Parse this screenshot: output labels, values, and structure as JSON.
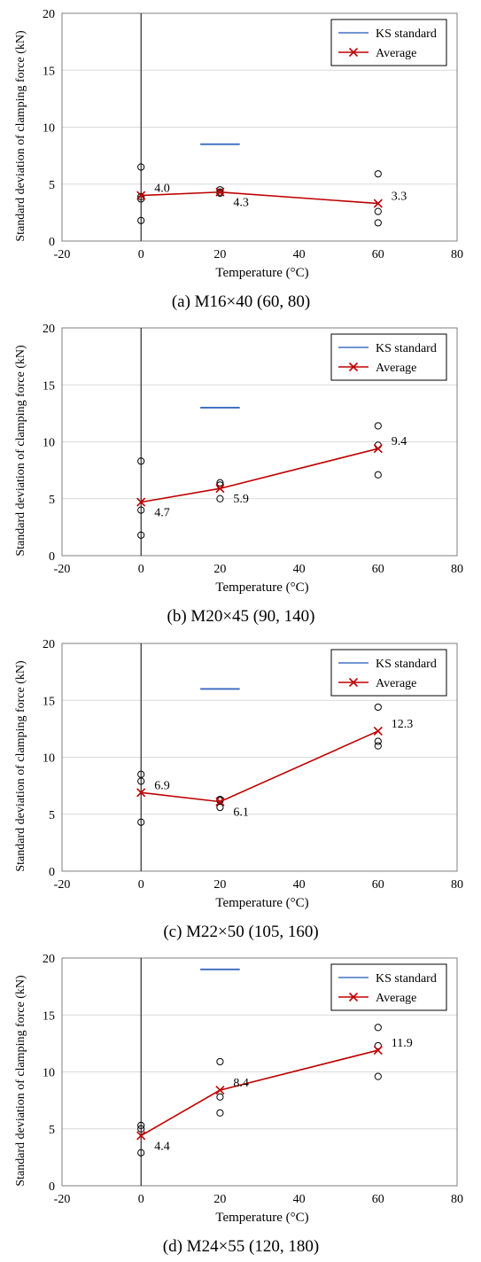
{
  "chart_data": [
    {
      "type": "scatter",
      "caption": "(a) M16×40 (60, 80)",
      "xlabel": "Temperature (°C)",
      "ylabel": "Standard deviation of clamping force (kN)",
      "xlim": [
        -20,
        80
      ],
      "ylim": [
        0,
        20
      ],
      "xticks": [
        -20,
        0,
        20,
        40,
        60,
        80
      ],
      "yticks": [
        0,
        5,
        10,
        15,
        20
      ],
      "grid": "horizontal",
      "legend_position": "top-right",
      "points": [
        {
          "x": 0,
          "y": 6.5
        },
        {
          "x": 0,
          "y": 3.9
        },
        {
          "x": 0,
          "y": 3.7
        },
        {
          "x": 0,
          "y": 1.8
        },
        {
          "x": 20,
          "y": 4.5
        },
        {
          "x": 20,
          "y": 4.3
        },
        {
          "x": 20,
          "y": 4.2
        },
        {
          "x": 60,
          "y": 5.9
        },
        {
          "x": 60,
          "y": 2.6
        },
        {
          "x": 60,
          "y": 1.6
        }
      ],
      "average": {
        "name": "Average",
        "color": "#c00000",
        "x": [
          0,
          20,
          60
        ],
        "y": [
          4.0,
          4.3,
          3.3
        ],
        "labels": [
          "4.0",
          "4.3",
          "3.3"
        ]
      },
      "ks_standard": {
        "name": "KS standard",
        "color": "#4472c4",
        "x": [
          15,
          25
        ],
        "y": 8.5
      }
    },
    {
      "type": "scatter",
      "caption": "(b) M20×45 (90, 140)",
      "xlabel": "Temperature (°C)",
      "ylabel": "Standard deviation of clamping force (kN)",
      "xlim": [
        -20,
        80
      ],
      "ylim": [
        0,
        20
      ],
      "xticks": [
        -20,
        0,
        20,
        40,
        60,
        80
      ],
      "yticks": [
        0,
        5,
        10,
        15,
        20
      ],
      "grid": "horizontal",
      "legend_position": "top-right",
      "points": [
        {
          "x": 0,
          "y": 8.3
        },
        {
          "x": 0,
          "y": 4.0
        },
        {
          "x": 0,
          "y": 1.8
        },
        {
          "x": 20,
          "y": 6.4
        },
        {
          "x": 20,
          "y": 6.2
        },
        {
          "x": 20,
          "y": 5.0
        },
        {
          "x": 60,
          "y": 11.4
        },
        {
          "x": 60,
          "y": 9.7
        },
        {
          "x": 60,
          "y": 7.1
        }
      ],
      "average": {
        "name": "Average",
        "color": "#c00000",
        "x": [
          0,
          20,
          60
        ],
        "y": [
          4.7,
          5.9,
          9.4
        ],
        "labels": [
          "4.7",
          "5.9",
          "9.4"
        ]
      },
      "ks_standard": {
        "name": "KS standard",
        "color": "#4472c4",
        "x": [
          15,
          25
        ],
        "y": 13.0
      }
    },
    {
      "type": "scatter",
      "caption": "(c) M22×50 (105, 160)",
      "xlabel": "Temperature (°C)",
      "ylabel": "Standard deviation of clamping force (kN)",
      "xlim": [
        -20,
        80
      ],
      "ylim": [
        0,
        20
      ],
      "xticks": [
        -20,
        0,
        20,
        40,
        60,
        80
      ],
      "yticks": [
        0,
        5,
        10,
        15,
        20
      ],
      "grid": "horizontal",
      "legend_position": "top-right",
      "points": [
        {
          "x": 0,
          "y": 8.5
        },
        {
          "x": 0,
          "y": 7.9
        },
        {
          "x": 0,
          "y": 4.3
        },
        {
          "x": 20,
          "y": 6.3
        },
        {
          "x": 20,
          "y": 6.2
        },
        {
          "x": 20,
          "y": 5.6
        },
        {
          "x": 60,
          "y": 14.4
        },
        {
          "x": 60,
          "y": 11.4
        },
        {
          "x": 60,
          "y": 11.0
        }
      ],
      "average": {
        "name": "Average",
        "color": "#c00000",
        "x": [
          0,
          20,
          60
        ],
        "y": [
          6.9,
          6.1,
          12.3
        ],
        "labels": [
          "6.9",
          "6.1",
          "12.3"
        ]
      },
      "ks_standard": {
        "name": "KS standard",
        "color": "#4472c4",
        "x": [
          15,
          25
        ],
        "y": 16.0
      }
    },
    {
      "type": "scatter",
      "caption": "(d) M24×55 (120, 180)",
      "xlabel": "Temperature (°C)",
      "ylabel": "Standard deviation of clamping force (kN)",
      "xlim": [
        -20,
        80
      ],
      "ylim": [
        0,
        20
      ],
      "xticks": [
        -20,
        0,
        20,
        40,
        60,
        80
      ],
      "yticks": [
        0,
        5,
        10,
        15,
        20
      ],
      "grid": "horizontal",
      "legend_position": "top-right",
      "points": [
        {
          "x": 0,
          "y": 5.3
        },
        {
          "x": 0,
          "y": 5.0
        },
        {
          "x": 0,
          "y": 2.9
        },
        {
          "x": 20,
          "y": 10.9
        },
        {
          "x": 20,
          "y": 7.8
        },
        {
          "x": 20,
          "y": 6.4
        },
        {
          "x": 60,
          "y": 13.9
        },
        {
          "x": 60,
          "y": 12.3
        },
        {
          "x": 60,
          "y": 9.6
        }
      ],
      "average": {
        "name": "Average",
        "color": "#c00000",
        "x": [
          0,
          20,
          60
        ],
        "y": [
          4.4,
          8.4,
          11.9
        ],
        "labels": [
          "4.4",
          "8.4",
          "11.9"
        ]
      },
      "ks_standard": {
        "name": "KS standard",
        "color": "#4472c4",
        "x": [
          15,
          25
        ],
        "y": 19.0
      }
    }
  ]
}
